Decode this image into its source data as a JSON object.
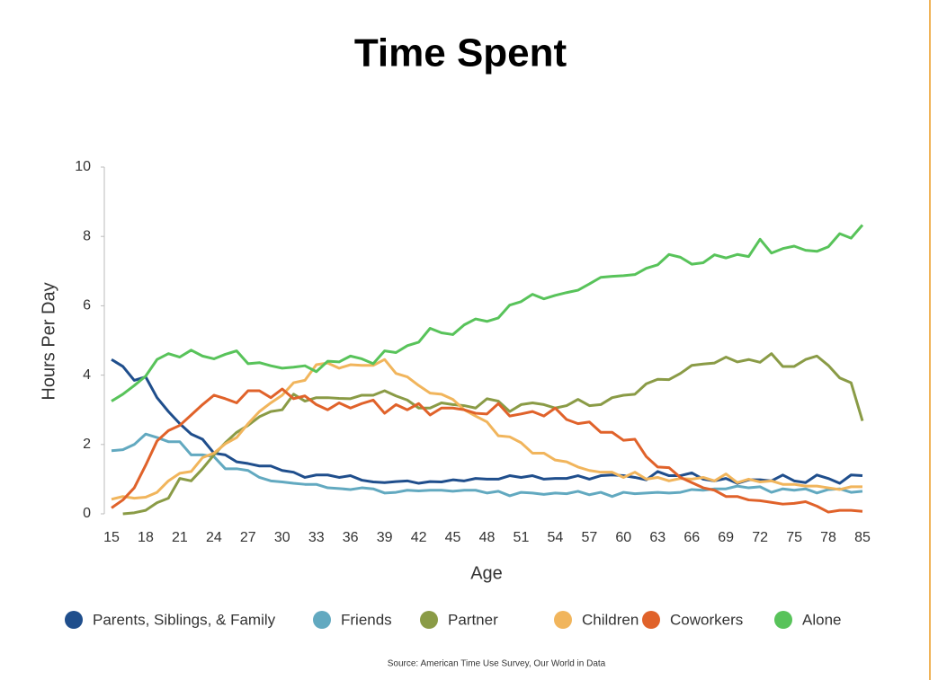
{
  "chart_data": {
    "type": "line",
    "title": "Time Spent",
    "xlabel": "Age",
    "ylabel": "Hours Per Day",
    "source": "Source: American Time Use Survey, Our World in Data",
    "categories": [
      15,
      null,
      null,
      18,
      null,
      null,
      21,
      null,
      null,
      24,
      null,
      null,
      27,
      null,
      null,
      30,
      null,
      null,
      33,
      null,
      null,
      36,
      null,
      null,
      39,
      null,
      null,
      42,
      null,
      null,
      45,
      null,
      null,
      48,
      null,
      null,
      51,
      null,
      null,
      54,
      null,
      null,
      57,
      null,
      null,
      60,
      null,
      null,
      63,
      null,
      null,
      66,
      null,
      null,
      69,
      null,
      null,
      72,
      null,
      null,
      75,
      null,
      null,
      78,
      null,
      null,
      85
    ],
    "ylim": [
      0,
      10
    ],
    "yticks": [
      0,
      2,
      4,
      6,
      8,
      10
    ],
    "series": [
      {
        "name": "Parents, Siblings, & Family",
        "color": "#1f4e8c",
        "values": [
          4.45,
          4.25,
          3.85,
          3.95,
          3.35,
          2.95,
          2.6,
          2.3,
          2.15,
          1.75,
          1.7,
          1.5,
          1.45,
          1.38,
          1.38,
          1.25,
          1.2,
          1.05,
          1.12,
          1.12,
          1.05,
          1.1,
          0.97,
          0.92,
          0.9,
          0.93,
          0.95,
          0.88,
          0.93,
          0.92,
          0.98,
          0.95,
          1.02,
          1.0,
          1.0,
          1.1,
          1.05,
          1.1,
          1.0,
          1.02,
          1.02,
          1.1,
          1.0,
          1.1,
          1.12,
          1.1,
          1.05,
          0.98,
          1.22,
          1.1,
          1.1,
          1.18,
          1.0,
          0.95,
          1.02,
          0.88,
          0.98,
          0.98,
          0.95,
          1.12,
          0.95,
          0.9,
          1.12,
          1.02,
          0.88,
          1.12,
          1.1
        ]
      },
      {
        "name": "Friends",
        "color": "#62a9c0",
        "values": [
          1.82,
          1.85,
          2.0,
          2.3,
          2.2,
          2.08,
          2.08,
          1.7,
          1.7,
          1.65,
          1.3,
          1.3,
          1.25,
          1.05,
          0.95,
          0.92,
          0.88,
          0.85,
          0.85,
          0.75,
          0.73,
          0.7,
          0.75,
          0.72,
          0.6,
          0.62,
          0.68,
          0.66,
          0.68,
          0.68,
          0.65,
          0.68,
          0.68,
          0.6,
          0.65,
          0.52,
          0.62,
          0.6,
          0.56,
          0.6,
          0.58,
          0.65,
          0.55,
          0.62,
          0.5,
          0.62,
          0.58,
          0.6,
          0.62,
          0.6,
          0.62,
          0.7,
          0.68,
          0.72,
          0.72,
          0.8,
          0.75,
          0.78,
          0.62,
          0.72,
          0.68,
          0.72,
          0.6,
          0.7,
          0.72,
          0.62,
          0.65
        ]
      },
      {
        "name": "Partner",
        "color": "#8a9b46",
        "values": [
          null,
          0.0,
          0.03,
          0.1,
          0.32,
          0.45,
          1.02,
          0.95,
          1.3,
          1.7,
          2.05,
          2.35,
          2.55,
          2.8,
          2.95,
          3.0,
          3.45,
          3.25,
          3.35,
          3.35,
          3.33,
          3.32,
          3.42,
          3.42,
          3.55,
          3.4,
          3.28,
          3.05,
          3.05,
          3.2,
          3.15,
          3.12,
          3.05,
          3.32,
          3.25,
          2.95,
          3.15,
          3.2,
          3.15,
          3.05,
          3.12,
          3.3,
          3.12,
          3.15,
          3.35,
          3.42,
          3.45,
          3.75,
          3.88,
          3.87,
          4.05,
          4.28,
          4.32,
          4.35,
          4.52,
          4.38,
          4.45,
          4.37,
          4.62,
          4.25,
          4.25,
          4.45,
          4.55,
          4.28,
          3.92,
          3.78,
          2.68
        ]
      },
      {
        "name": "Children",
        "color": "#f1b55c",
        "values": [
          0.42,
          0.5,
          0.45,
          0.48,
          0.62,
          0.95,
          1.17,
          1.22,
          1.62,
          1.75,
          2.02,
          2.2,
          2.6,
          2.95,
          3.2,
          3.42,
          3.78,
          3.85,
          4.3,
          4.35,
          4.2,
          4.3,
          4.28,
          4.28,
          4.45,
          4.05,
          3.95,
          3.7,
          3.48,
          3.45,
          3.3,
          3.0,
          2.82,
          2.65,
          2.25,
          2.22,
          2.05,
          1.75,
          1.75,
          1.55,
          1.5,
          1.35,
          1.25,
          1.2,
          1.2,
          1.05,
          1.2,
          1.0,
          1.05,
          0.95,
          1.02,
          1.0,
          1.05,
          0.95,
          1.15,
          0.9,
          1.0,
          0.92,
          0.95,
          0.85,
          0.85,
          0.8,
          0.8,
          0.75,
          0.7,
          0.78,
          0.78
        ]
      },
      {
        "name": "Coworkers",
        "color": "#e0622a",
        "values": [
          0.17,
          0.4,
          0.75,
          1.4,
          2.1,
          2.4,
          2.55,
          2.85,
          3.15,
          3.42,
          3.32,
          3.2,
          3.55,
          3.55,
          3.35,
          3.6,
          3.32,
          3.4,
          3.15,
          3.0,
          3.2,
          3.05,
          3.18,
          3.28,
          2.9,
          3.15,
          3.0,
          3.18,
          2.85,
          3.05,
          3.05,
          3.0,
          2.9,
          2.88,
          3.18,
          2.82,
          2.88,
          2.95,
          2.82,
          3.05,
          2.72,
          2.6,
          2.65,
          2.35,
          2.35,
          2.12,
          2.15,
          1.65,
          1.35,
          1.33,
          1.05,
          0.9,
          0.75,
          0.68,
          0.5,
          0.5,
          0.4,
          0.38,
          0.33,
          0.28,
          0.3,
          0.35,
          0.22,
          0.05,
          0.1,
          0.1,
          0.07
        ]
      },
      {
        "name": "Alone",
        "color": "#58c35a",
        "values": [
          3.25,
          3.45,
          3.7,
          3.97,
          4.45,
          4.62,
          4.52,
          4.72,
          4.55,
          4.47,
          4.6,
          4.7,
          4.33,
          4.36,
          4.27,
          4.2,
          4.23,
          4.27,
          4.1,
          4.4,
          4.38,
          4.55,
          4.47,
          4.33,
          4.7,
          4.65,
          4.85,
          4.95,
          5.35,
          5.22,
          5.17,
          5.45,
          5.62,
          5.55,
          5.65,
          6.02,
          6.12,
          6.33,
          6.2,
          6.3,
          6.38,
          6.45,
          6.63,
          6.82,
          6.85,
          6.87,
          6.9,
          7.08,
          7.18,
          7.48,
          7.4,
          7.2,
          7.24,
          7.47,
          7.38,
          7.48,
          7.42,
          7.92,
          7.52,
          7.65,
          7.72,
          7.6,
          7.57,
          7.7,
          8.08,
          7.95,
          8.33
        ]
      }
    ]
  }
}
